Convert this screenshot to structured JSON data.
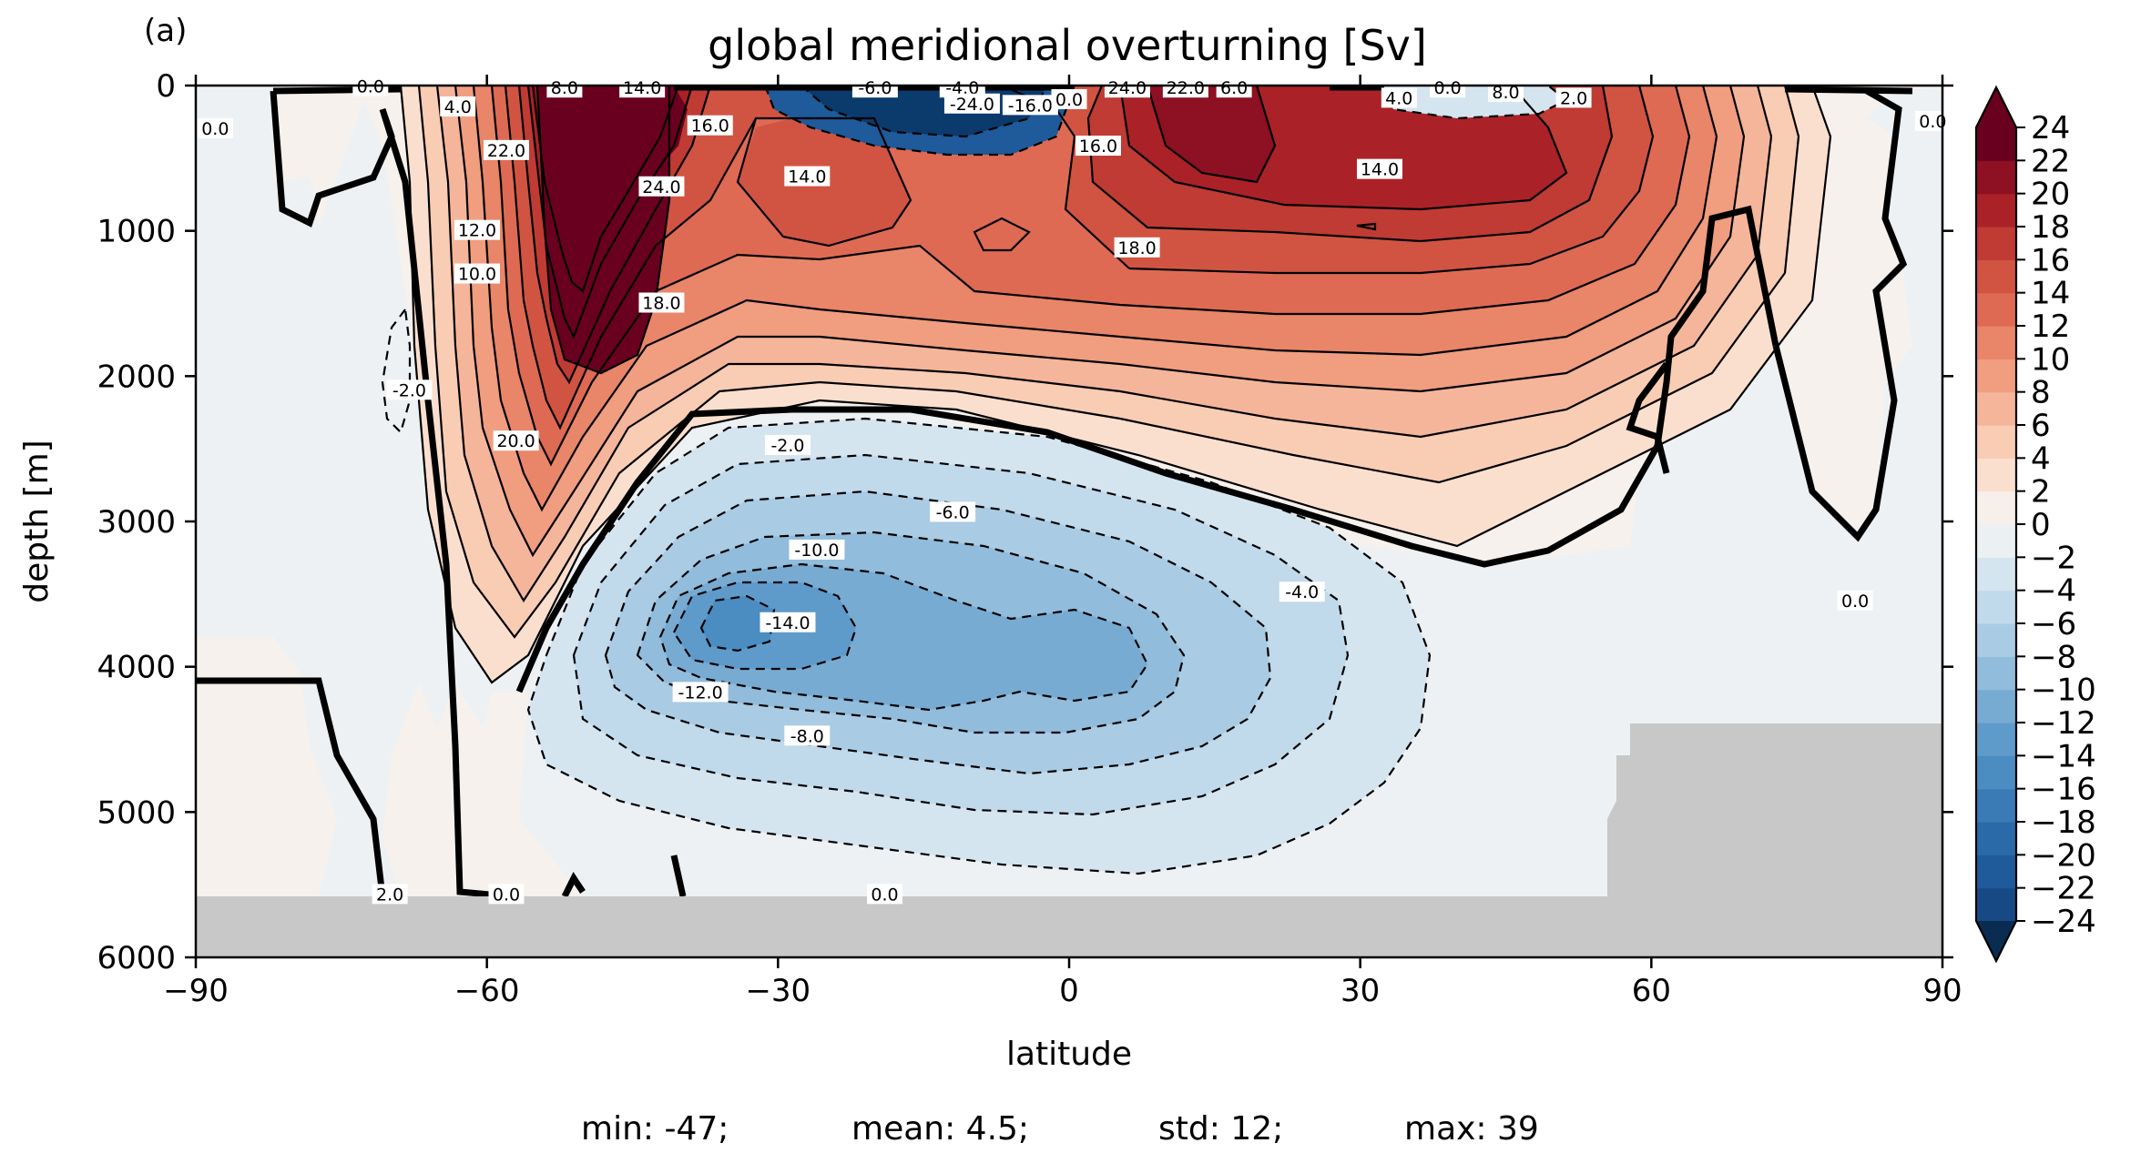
{
  "panel_label": "(a)",
  "stats": {
    "min": "min: -47;",
    "mean": "mean: 4.5;",
    "std": "std: 12;",
    "max": "max: 39"
  },
  "chart_data": {
    "type": "heatmap",
    "subtype": "filled contour",
    "title": "global meridional overturning [Sv]",
    "xlabel": "latitude",
    "ylabel": "depth [m]",
    "xlim": [
      -90,
      90
    ],
    "ylim": [
      6000,
      0
    ],
    "y_inverted": true,
    "xticks": [
      -90,
      -60,
      -30,
      0,
      30,
      60,
      90
    ],
    "xtick_labels": [
      "−90",
      "−60",
      "−30",
      "0",
      "30",
      "60",
      "90"
    ],
    "yticks": [
      0,
      1000,
      2000,
      3000,
      4000,
      5000,
      6000
    ],
    "ytick_labels": [
      "0",
      "1000",
      "2000",
      "3000",
      "4000",
      "5000",
      "6000"
    ],
    "colormap": "RdBu_r",
    "colorbar": {
      "levels": [
        -24,
        -22,
        -20,
        -18,
        -16,
        -14,
        -12,
        -10,
        -8,
        -6,
        -4,
        -2,
        0,
        2,
        4,
        6,
        8,
        10,
        12,
        14,
        16,
        18,
        20,
        22,
        24
      ],
      "tick_labels": [
        "−24",
        "−22",
        "−20",
        "−18",
        "−16",
        "−14",
        "−12",
        "−10",
        "−8",
        "−6",
        "−4",
        "−2",
        "0",
        "2",
        "4",
        "6",
        "8",
        "10",
        "12",
        "14",
        "16",
        "18",
        "20",
        "22",
        "24"
      ],
      "colors": [
        "#0b3a6c",
        "#174a85",
        "#1f5a9a",
        "#2b6aa8",
        "#3a7bb6",
        "#4b8cc1",
        "#5f9bca",
        "#78abd2",
        "#91bcdb",
        "#a9cbe3",
        "#c0d9eb",
        "#d5e5f0",
        "#ebf0f3",
        "#f6efea",
        "#fbdfce",
        "#f9ccb4",
        "#f5b59a",
        "#f09d80",
        "#e98568",
        "#df6a54",
        "#d15443",
        "#bf3b33",
        "#aa2227",
        "#8d1023",
        "#6a0020"
      ],
      "extend": "both",
      "under_color": "#0b2c52",
      "over_color": "#6a0020"
    },
    "land_color": "#c8c8c8",
    "grid": false,
    "contour_labels": [
      {
        "text": "0.0",
        "lat": -88,
        "depth": 300
      },
      {
        "text": "0.0",
        "lat": -72,
        "depth": 10
      },
      {
        "text": "4.0",
        "lat": -63,
        "depth": 150
      },
      {
        "text": "22.0",
        "lat": -58,
        "depth": 450
      },
      {
        "text": "12.0",
        "lat": -61,
        "depth": 1000
      },
      {
        "text": "10.0",
        "lat": -61,
        "depth": 1300
      },
      {
        "text": "8.0",
        "lat": -52,
        "depth": 20
      },
      {
        "text": "14.0",
        "lat": -44,
        "depth": 20
      },
      {
        "text": "16.0",
        "lat": -37,
        "depth": 280
      },
      {
        "text": "24.0",
        "lat": -42,
        "depth": 700
      },
      {
        "text": "18.0",
        "lat": -42,
        "depth": 1500
      },
      {
        "text": "20.0",
        "lat": -57,
        "depth": 2450
      },
      {
        "text": "-2.0",
        "lat": -68,
        "depth": 2100
      },
      {
        "text": "-6.0",
        "lat": -20,
        "depth": 20
      },
      {
        "text": "-4.0",
        "lat": -11,
        "depth": 20
      },
      {
        "text": "-24.0",
        "lat": -10,
        "depth": 130
      },
      {
        "text": "-16.0",
        "lat": -4,
        "depth": 140
      },
      {
        "text": "0.0",
        "lat": 0,
        "depth": 100
      },
      {
        "text": "14.0",
        "lat": -27,
        "depth": 630
      },
      {
        "text": "16.0",
        "lat": 3,
        "depth": 420
      },
      {
        "text": "24.0",
        "lat": 6,
        "depth": 20
      },
      {
        "text": "22.0",
        "lat": 12,
        "depth": 20
      },
      {
        "text": "6.0",
        "lat": 17,
        "depth": 20
      },
      {
        "text": "18.0",
        "lat": 7,
        "depth": 1120
      },
      {
        "text": "14.0",
        "lat": 32,
        "depth": 580
      },
      {
        "text": "4.0",
        "lat": 34,
        "depth": 90
      },
      {
        "text": "0.0",
        "lat": 39,
        "depth": 20
      },
      {
        "text": "8.0",
        "lat": 45,
        "depth": 50
      },
      {
        "text": "2.0",
        "lat": 52,
        "depth": 90
      },
      {
        "text": "0.0",
        "lat": 89,
        "depth": 250
      },
      {
        "text": "-2.0",
        "lat": -29,
        "depth": 2480
      },
      {
        "text": "-6.0",
        "lat": -12,
        "depth": 2940
      },
      {
        "text": "-10.0",
        "lat": -26,
        "depth": 3200
      },
      {
        "text": "-14.0",
        "lat": -29,
        "depth": 3700
      },
      {
        "text": "-12.0",
        "lat": -38,
        "depth": 4180
      },
      {
        "text": "-8.0",
        "lat": -27,
        "depth": 4480
      },
      {
        "text": "-4.0",
        "lat": 24,
        "depth": 3490
      },
      {
        "text": "0.0",
        "lat": 81,
        "depth": 3550
      },
      {
        "text": "2.0",
        "lat": -70,
        "depth": 5570
      },
      {
        "text": "0.0",
        "lat": -58,
        "depth": 5570
      },
      {
        "text": "0.0",
        "lat": -19,
        "depth": 5570
      }
    ]
  }
}
